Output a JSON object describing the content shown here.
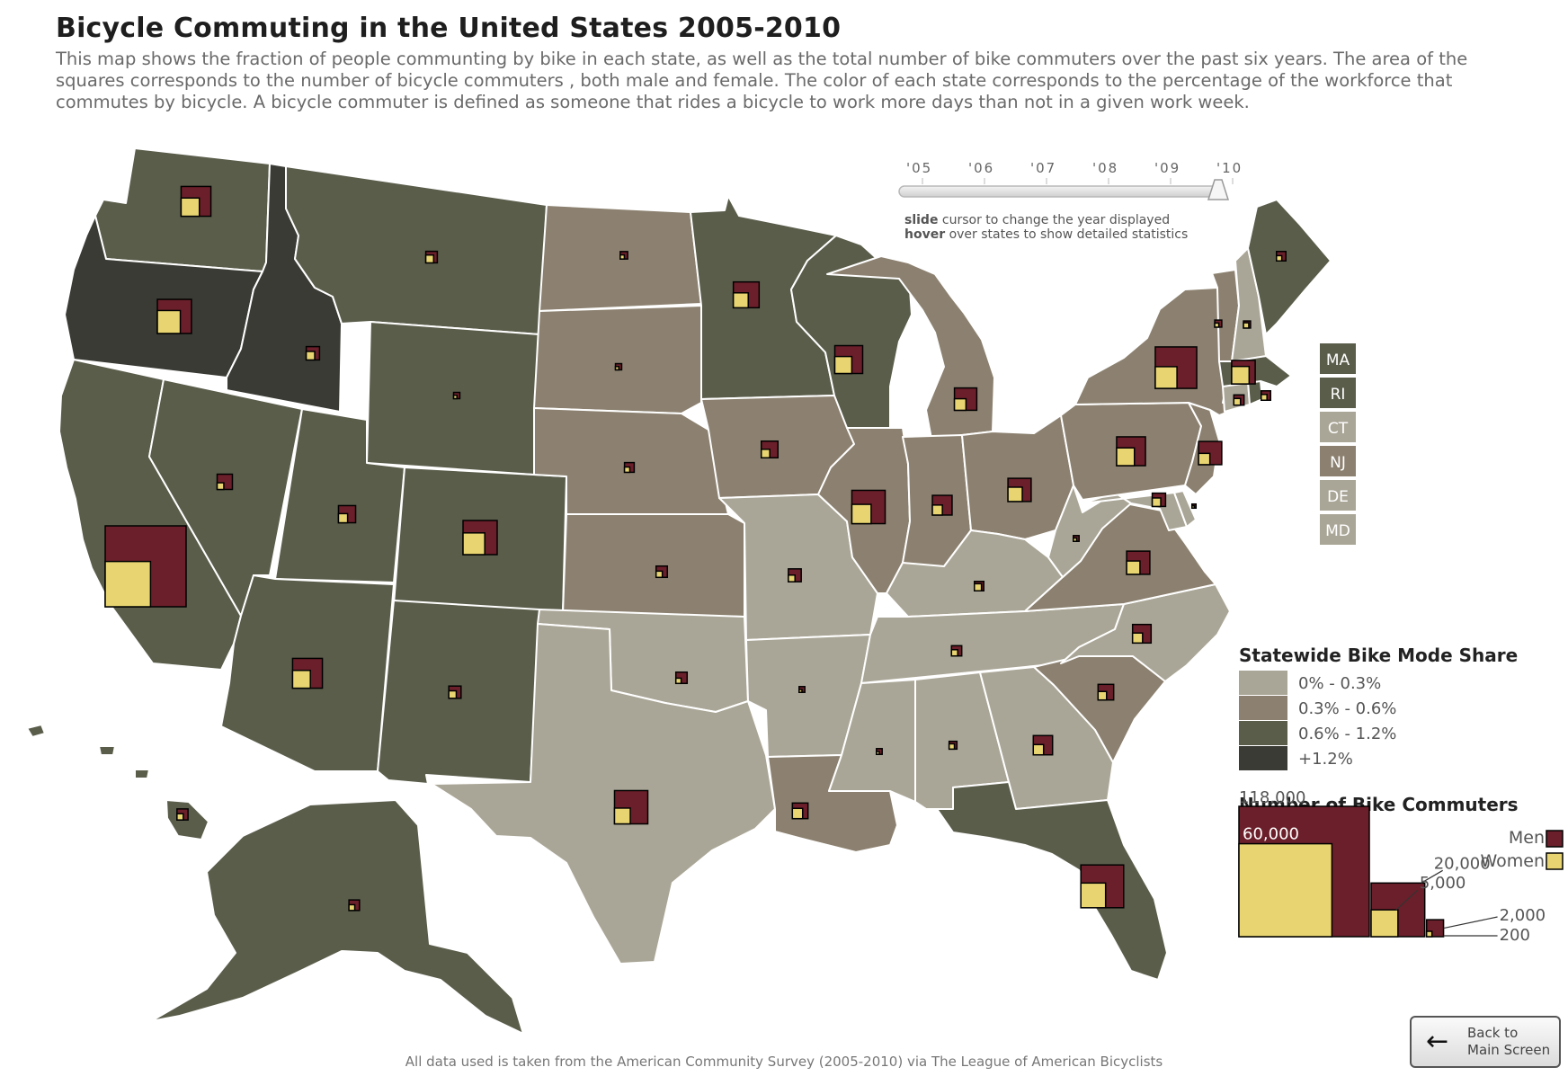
{
  "title": "Bicycle Commuting in the United States 2005-2010",
  "description": "This map shows the fraction of people communting by bike in each state, as well as the total number of bike commuters over the past six years. The area of the squares corresponds to the number of bicycle commuters , both male and female. The color of each state corresponds to the percentage of the workforce that commutes by bicycle. A bicycle commuter is defined as someone that rides a bicycle to work more days than not in a given work week.",
  "timeline": {
    "years": [
      "'05",
      "'06",
      "'07",
      "'08",
      "'09",
      "'10"
    ],
    "selected_year": "'10",
    "instruction_slide_bold": "slide",
    "instruction_slide_rest": " cursor to change the year displayed",
    "instruction_hover_bold": "hover",
    "instruction_hover_rest": " over states to show detailed statistics"
  },
  "small_states": [
    {
      "abbr": "MA",
      "share_class": 2
    },
    {
      "abbr": "RI",
      "share_class": 2
    },
    {
      "abbr": "CT",
      "share_class": 0
    },
    {
      "abbr": "NJ",
      "share_class": 1
    },
    {
      "abbr": "DE",
      "share_class": 0
    },
    {
      "abbr": "MD",
      "share_class": 0
    }
  ],
  "legend_share": {
    "title": "Statewide Bike Mode Share",
    "items": [
      {
        "label": "0% - 0.3%",
        "color": "#aaa697"
      },
      {
        "label": "0.3% - 0.6%",
        "color": "#8c8170"
      },
      {
        "label": "0.6% - 1.2%",
        "color": "#5b5d4b"
      },
      {
        "label": "+1.2%",
        "color": "#3b3b36"
      }
    ]
  },
  "legend_commuters": {
    "title": "Number of Bike Commuters",
    "men_label": "Men",
    "women_label": "Women",
    "men_color": "#6b1f2a",
    "women_color": "#e8d571",
    "scale": [
      {
        "label": "118,000",
        "value": 118000
      },
      {
        "label": "60,000",
        "value": 60000
      },
      {
        "label": "20,000",
        "value": 20000
      },
      {
        "label": "5,000",
        "value": 5000
      },
      {
        "label": "2,000",
        "value": 2000
      },
      {
        "label": "200",
        "value": 200
      }
    ]
  },
  "states": [
    {
      "abbr": "WA",
      "share_class": 2,
      "total": 16000,
      "women": 6000
    },
    {
      "abbr": "OR",
      "share_class": 3,
      "total": 21000,
      "women": 9500
    },
    {
      "abbr": "ID",
      "share_class": 3,
      "total": 3200,
      "women": 1300
    },
    {
      "abbr": "MT",
      "share_class": 2,
      "total": 2400,
      "women": 1100
    },
    {
      "abbr": "WY",
      "share_class": 2,
      "total": 700,
      "women": 200
    },
    {
      "abbr": "CA",
      "share_class": 2,
      "total": 118000,
      "women": 37000
    },
    {
      "abbr": "NV",
      "share_class": 2,
      "total": 4200,
      "women": 800
    },
    {
      "abbr": "UT",
      "share_class": 2,
      "total": 5300,
      "women": 1500
    },
    {
      "abbr": "CO",
      "share_class": 2,
      "total": 21000,
      "women": 8500
    },
    {
      "abbr": "AZ",
      "share_class": 2,
      "total": 16000,
      "women": 5700
    },
    {
      "abbr": "NM",
      "share_class": 2,
      "total": 2700,
      "women": 1000
    },
    {
      "abbr": "ND",
      "share_class": 1,
      "total": 1000,
      "women": 300
    },
    {
      "abbr": "SD",
      "share_class": 1,
      "total": 700,
      "women": 200
    },
    {
      "abbr": "NE",
      "share_class": 1,
      "total": 1700,
      "women": 500
    },
    {
      "abbr": "KS",
      "share_class": 1,
      "total": 2300,
      "women": 700
    },
    {
      "abbr": "OK",
      "share_class": 0,
      "total": 2300,
      "women": 500
    },
    {
      "abbr": "TX",
      "share_class": 0,
      "total": 20000,
      "women": 4500
    },
    {
      "abbr": "MN",
      "share_class": 2,
      "total": 12000,
      "women": 4000
    },
    {
      "abbr": "IA",
      "share_class": 1,
      "total": 5000,
      "women": 1300
    },
    {
      "abbr": "MO",
      "share_class": 0,
      "total": 3000,
      "women": 800
    },
    {
      "abbr": "AR",
      "share_class": 0,
      "total": 600,
      "women": 150
    },
    {
      "abbr": "LA",
      "share_class": 1,
      "total": 4400,
      "women": 1900
    },
    {
      "abbr": "WI",
      "share_class": 2,
      "total": 14000,
      "women": 5200
    },
    {
      "abbr": "IL",
      "share_class": 1,
      "total": 20000,
      "women": 6700
    },
    {
      "abbr": "MI",
      "share_class": 1,
      "total": 9000,
      "women": 2400
    },
    {
      "abbr": "IN",
      "share_class": 1,
      "total": 7000,
      "women": 1800
    },
    {
      "abbr": "OH",
      "share_class": 1,
      "total": 9700,
      "women": 3700
    },
    {
      "abbr": "KY",
      "share_class": 0,
      "total": 1600,
      "women": 900
    },
    {
      "abbr": "TN",
      "share_class": 0,
      "total": 1900,
      "women": 700
    },
    {
      "abbr": "MS",
      "share_class": 0,
      "total": 600,
      "women": 150
    },
    {
      "abbr": "AL",
      "share_class": 0,
      "total": 1100,
      "women": 500
    },
    {
      "abbr": "GA",
      "share_class": 0,
      "total": 6700,
      "women": 1900
    },
    {
      "abbr": "FL",
      "share_class": 2,
      "total": 33000,
      "women": 11000
    },
    {
      "abbr": "SC",
      "share_class": 1,
      "total": 4400,
      "women": 1300
    },
    {
      "abbr": "NC",
      "share_class": 0,
      "total": 6200,
      "women": 1800
    },
    {
      "abbr": "VA",
      "share_class": 1,
      "total": 9700,
      "women": 3200
    },
    {
      "abbr": "WV",
      "share_class": 0,
      "total": 600,
      "women": 200
    },
    {
      "abbr": "PA",
      "share_class": 1,
      "total": 15000,
      "women": 5700
    },
    {
      "abbr": "NY",
      "share_class": 1,
      "total": 31000,
      "women": 8500
    },
    {
      "abbr": "VT",
      "share_class": 1,
      "total": 900,
      "women": 300
    },
    {
      "abbr": "NH",
      "share_class": 0,
      "total": 900,
      "women": 500
    },
    {
      "abbr": "ME",
      "share_class": 2,
      "total": 1600,
      "women": 500
    },
    {
      "abbr": "MA",
      "share_class": 2,
      "total": 10000,
      "women": 5500
    },
    {
      "abbr": "RI",
      "share_class": 2,
      "total": 1600,
      "women": 600
    },
    {
      "abbr": "CT",
      "share_class": 0,
      "total": 1900,
      "women": 800
    },
    {
      "abbr": "NJ",
      "share_class": 1,
      "total": 9700,
      "women": 2300
    },
    {
      "abbr": "DE",
      "share_class": 0,
      "total": 300,
      "women": 100
    },
    {
      "abbr": "MD",
      "share_class": 0,
      "total": 3200,
      "women": 1300
    },
    {
      "abbr": "AK",
      "share_class": 2,
      "total": 2000,
      "women": 600
    },
    {
      "abbr": "HI",
      "share_class": 2,
      "total": 2200,
      "women": 700
    }
  ],
  "credit": "All data used is taken from the American Community Survey (2005-2010) via The League of American Bicyclists",
  "back_button": {
    "line1": "Back to",
    "line2": "Main Screen"
  }
}
